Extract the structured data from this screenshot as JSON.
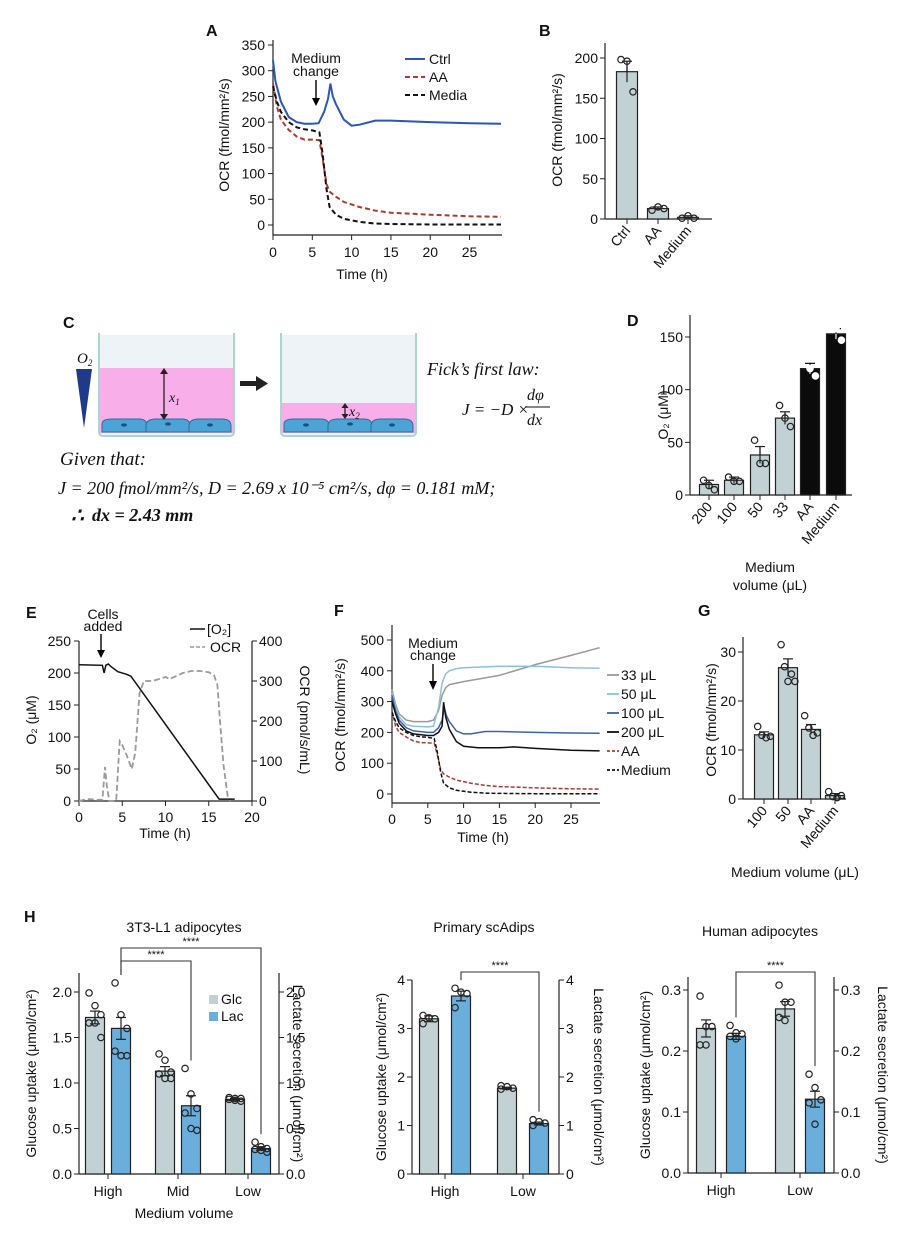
{
  "colors": {
    "ctrl": "#2a57b8",
    "aa": "#b03a2e",
    "black": "#111111",
    "bar_grey": "#c2d1d4",
    "bar_blue": "#6aaedc",
    "vol33": "#9a9a9a",
    "vol50": "#8cc1de",
    "vol100": "#3a64a8",
    "ocr_grey": "#9a9a9a",
    "pink": "#f7a8e8",
    "cell": "#4ca3d6",
    "triangle": "#1f3a8a"
  },
  "panels": {
    "A": "A",
    "B": "B",
    "C": "C",
    "D": "D",
    "E": "E",
    "F": "F",
    "G": "G",
    "H": "H"
  },
  "chart_data": [
    {
      "id": "A",
      "type": "line",
      "xlabel": "Time (h)",
      "ylabel": "OCR (fmol/mm²/s)",
      "xlim": [
        0,
        29
      ],
      "ylim": [
        -20,
        350
      ],
      "xticks": [
        0,
        5,
        10,
        15,
        20,
        25
      ],
      "yticks": [
        0,
        50,
        100,
        150,
        200,
        250,
        300,
        350
      ],
      "annotation": {
        "line1": "Medium",
        "line2": "change",
        "x": 5.6
      },
      "legend": [
        "Ctrl",
        "AA",
        "Media"
      ],
      "legend_position": "top-right",
      "series": [
        {
          "name": "Ctrl",
          "style": "solid",
          "x": [
            0,
            0.3,
            1,
            2,
            3,
            4,
            5,
            5.8,
            6.5,
            7,
            7.3,
            7.6,
            8,
            9,
            10,
            11,
            13,
            15,
            20,
            25,
            29
          ],
          "y": [
            320,
            280,
            240,
            210,
            200,
            197,
            197,
            198,
            220,
            245,
            275,
            250,
            235,
            205,
            193,
            195,
            203,
            203,
            200,
            198,
            197
          ]
        },
        {
          "name": "AA",
          "style": "dashed",
          "x": [
            0,
            0.5,
            1,
            2,
            3,
            4,
            5,
            5.9,
            6.3,
            6.8,
            7.2,
            8,
            9,
            11,
            13,
            15,
            20,
            25,
            29
          ],
          "y": [
            275,
            230,
            205,
            185,
            172,
            166,
            166,
            165,
            130,
            80,
            65,
            55,
            45,
            35,
            28,
            24,
            20,
            17,
            16
          ]
        },
        {
          "name": "Media",
          "style": "dashed",
          "x": [
            0,
            0.5,
            1,
            2,
            3,
            4,
            5,
            5.9,
            6.3,
            6.8,
            7.2,
            8,
            9,
            11,
            13,
            15,
            20,
            25,
            29
          ],
          "y": [
            270,
            240,
            220,
            200,
            190,
            186,
            184,
            180,
            140,
            70,
            35,
            20,
            12,
            6,
            3,
            2,
            1,
            1,
            1
          ]
        }
      ]
    },
    {
      "id": "B",
      "type": "bar",
      "ylabel": "OCR (fmol/mm²/s)",
      "categories": [
        "Ctrl",
        "AA",
        "Medium"
      ],
      "values": [
        183,
        13,
        2
      ],
      "errors": [
        13,
        2,
        2
      ],
      "points": [
        [
          198,
          196,
          158
        ],
        [
          11,
          15,
          13
        ],
        [
          1,
          4,
          1
        ]
      ],
      "ylim": [
        0,
        220
      ],
      "yticks": [
        0,
        50,
        100,
        150,
        200
      ]
    },
    {
      "id": "D",
      "type": "bar",
      "ylabel": "O₂ (μM)",
      "xlabel_line1": "Medium",
      "xlabel_line2": "volume (μL)",
      "categories": [
        "200",
        "100",
        "50",
        "33",
        "AA",
        "Medium"
      ],
      "values": [
        10,
        14,
        38,
        73,
        120,
        153
      ],
      "errors": [
        4,
        3,
        8,
        6,
        5,
        5
      ],
      "points": [
        [
          14,
          9,
          5
        ],
        [
          17,
          13,
          13
        ],
        [
          52,
          30,
          30
        ],
        [
          85,
          73,
          65
        ],
        [
          130,
          120,
          113
        ],
        [
          158,
          158,
          147
        ]
      ],
      "bar_colors": [
        "grey",
        "grey",
        "grey",
        "grey",
        "black",
        "black"
      ],
      "ylim": [
        0,
        170
      ],
      "yticks": [
        0,
        50,
        100,
        150
      ]
    },
    {
      "id": "E",
      "type": "line",
      "xlabel": "Time (h)",
      "ylabel_left": "O₂ (μM)",
      "ylabel_right": "OCR (pmol/s/mL)",
      "xlim": [
        0,
        20
      ],
      "ylim_left": [
        0,
        250
      ],
      "ylim_right": [
        0,
        400
      ],
      "xticks": [
        0,
        5,
        10,
        15,
        20
      ],
      "yticks_left": [
        0,
        50,
        100,
        150,
        200,
        250
      ],
      "yticks_right": [
        0,
        100,
        200,
        300,
        400
      ],
      "annotation": {
        "line1": "Cells",
        "line2": "added",
        "x": 2.6
      },
      "legend": [
        "[O₂]",
        "OCR"
      ],
      "series": [
        {
          "name": "[O2]",
          "axis": "left",
          "style": "solid",
          "x": [
            0,
            2.7,
            2.9,
            3.1,
            3.4,
            3.7,
            4.5,
            5.5,
            6,
            16.2,
            18
          ],
          "y": [
            213,
            212,
            200,
            212,
            214,
            210,
            202,
            198,
            195,
            3,
            3
          ]
        },
        {
          "name": "OCR",
          "axis": "right",
          "style": "dashed",
          "x": [
            0,
            1,
            2,
            2.7,
            3.0,
            3.2,
            3.5,
            3.8,
            4.3,
            4.7,
            5.0,
            5.5,
            6.1,
            6.5,
            7.0,
            7.5,
            8.5,
            10,
            10.5,
            12,
            13,
            14,
            15,
            15.6,
            16,
            16.3,
            16.7,
            17.2,
            17.5
          ],
          "y": [
            0,
            5,
            3,
            3,
            85,
            40,
            0,
            0,
            0,
            150,
            140,
            115,
            80,
            120,
            270,
            300,
            300,
            310,
            305,
            320,
            325,
            325,
            322,
            315,
            290,
            200,
            90,
            10,
            0
          ]
        }
      ]
    },
    {
      "id": "F",
      "type": "line",
      "xlabel": "Time (h)",
      "ylabel": "OCR (fmol/mm²/s)",
      "xlim": [
        0,
        29
      ],
      "ylim": [
        -20,
        550
      ],
      "xticks": [
        0,
        5,
        10,
        15,
        20,
        25
      ],
      "yticks": [
        0,
        100,
        200,
        300,
        400,
        500
      ],
      "annotation": {
        "line1": "Medium",
        "line2": "change",
        "x": 5.8
      },
      "legend": [
        "33 μL",
        "50 μL",
        "100 μL",
        "200 μL",
        "AA",
        "Medium"
      ],
      "legend_position": "right",
      "series": [
        {
          "name": "33 μL",
          "style": "solid",
          "x": [
            0,
            0.5,
            1,
            2,
            3,
            5,
            5.8,
            6.5,
            7,
            7.5,
            8,
            9,
            10,
            15,
            20,
            25,
            29
          ],
          "y": [
            340,
            290,
            260,
            240,
            235,
            235,
            240,
            270,
            320,
            345,
            355,
            360,
            365,
            385,
            420,
            450,
            475
          ]
        },
        {
          "name": "50 μL",
          "style": "solid",
          "x": [
            0,
            0.5,
            1,
            2,
            3,
            5,
            5.8,
            6.5,
            7,
            7.5,
            8,
            9,
            10,
            15,
            20,
            25,
            29
          ],
          "y": [
            330,
            280,
            250,
            225,
            220,
            218,
            220,
            280,
            360,
            390,
            400,
            407,
            410,
            415,
            415,
            410,
            408
          ]
        },
        {
          "name": "100 μL",
          "style": "solid",
          "x": [
            0,
            0.5,
            1,
            2,
            3,
            5,
            5.8,
            6.5,
            7,
            7.3,
            7.6,
            8,
            9,
            10,
            11,
            13,
            15,
            20,
            25,
            29
          ],
          "y": [
            320,
            270,
            240,
            215,
            205,
            200,
            200,
            215,
            240,
            280,
            255,
            235,
            205,
            195,
            195,
            203,
            203,
            200,
            198,
            197
          ]
        },
        {
          "name": "200 μL",
          "style": "solid",
          "x": [
            0,
            0.5,
            1,
            2,
            3,
            5,
            5.8,
            6.5,
            7,
            7.2,
            7.5,
            8,
            9,
            10,
            12,
            15,
            17,
            20,
            25,
            29
          ],
          "y": [
            300,
            260,
            230,
            205,
            195,
            190,
            190,
            200,
            220,
            298,
            250,
            210,
            170,
            155,
            150,
            150,
            153,
            148,
            142,
            140
          ]
        },
        {
          "name": "AA",
          "style": "dashed",
          "x": [
            0,
            0.5,
            1,
            2,
            3,
            4,
            5,
            5.9,
            6.3,
            6.8,
            7.2,
            8,
            9,
            11,
            13,
            15,
            20,
            25,
            29
          ],
          "y": [
            270,
            220,
            200,
            185,
            172,
            167,
            166,
            165,
            130,
            80,
            65,
            55,
            45,
            35,
            28,
            24,
            20,
            17,
            16
          ]
        },
        {
          "name": "Medium",
          "style": "dashed",
          "x": [
            0,
            0.5,
            1,
            2,
            3,
            4,
            5,
            5.9,
            6.3,
            6.8,
            7.2,
            8,
            9,
            11,
            13,
            15,
            20,
            25,
            29
          ],
          "y": [
            265,
            235,
            215,
            200,
            190,
            186,
            184,
            180,
            140,
            70,
            35,
            20,
            12,
            6,
            3,
            2,
            1,
            1,
            1
          ]
        }
      ]
    },
    {
      "id": "G",
      "type": "bar",
      "ylabel": "OCR (fmol/mm²/s)",
      "xlabel": "Medium volume (μL)",
      "categories": [
        "100",
        "50",
        "AA",
        "Medium"
      ],
      "values": [
        13.1,
        26.8,
        14.2,
        0.7
      ],
      "errors": [
        0.6,
        1.8,
        1.0,
        0.4
      ],
      "points": [
        [
          14.8,
          13,
          12.5,
          12.8
        ],
        [
          31.5,
          27,
          24,
          25.5,
          24
        ],
        [
          17,
          14.5,
          13,
          13.5
        ],
        [
          1.5,
          0.5,
          0.3,
          0.7
        ]
      ],
      "ylim": [
        0,
        33
      ],
      "yticks": [
        0,
        10,
        20,
        30
      ]
    },
    {
      "id": "H1",
      "type": "bar",
      "title": "3T3-L1 adipocytes",
      "xlabel": "Medium volume",
      "ylabel_left": "Glucose uptake (μmol/cm²)",
      "ylabel_right": "Lactate secretion (μmol/cm²)",
      "categories": [
        "High",
        "Mid",
        "Low"
      ],
      "legend": [
        "Glc",
        "Lac"
      ],
      "ylim": [
        0,
        2.2
      ],
      "yticks": [
        "0.0",
        "0.5",
        "1.0",
        "1.5",
        "2.0"
      ],
      "series": [
        {
          "name": "Glc",
          "values": [
            1.72,
            1.13,
            0.82
          ],
          "errors": [
            0.07,
            0.05,
            0.01
          ],
          "points": [
            [
              1.99,
              1.85,
              1.75,
              1.66,
              1.66,
              1.5
            ],
            [
              1.32,
              1.25,
              1.12,
              1.1,
              1.05,
              1.05
            ],
            [
              0.84,
              0.83,
              0.83,
              0.82,
              0.81,
              0.8
            ]
          ]
        },
        {
          "name": "Lac",
          "values": [
            1.6,
            0.75,
            0.28
          ],
          "errors": [
            0.12,
            0.11,
            0.02
          ],
          "points": [
            [
              2.1,
              1.75,
              1.6,
              1.35,
              1.3,
              1.3
            ],
            [
              1.16,
              0.88,
              0.72,
              0.67,
              0.5,
              0.48
            ],
            [
              0.35,
              0.3,
              0.28,
              0.27,
              0.26,
              0.24
            ]
          ]
        }
      ],
      "significance": [
        {
          "from": "High-Lac",
          "to": "Mid-Lac",
          "label": "****"
        },
        {
          "from": "High-Lac",
          "to": "Low-Lac",
          "label": "****"
        }
      ]
    },
    {
      "id": "H2",
      "type": "bar",
      "title": "Primary scAdips",
      "ylabel_left": "Glucose uptake (μmol/cm²)",
      "ylabel_right": "Lactate secretion (μmol/cm²)",
      "categories": [
        "High",
        "Low"
      ],
      "ylim": [
        0,
        4
      ],
      "yticks": [
        "0",
        "1",
        "2",
        "3",
        "4"
      ],
      "series": [
        {
          "name": "Glc",
          "values": [
            3.2,
            1.77
          ],
          "errors": [
            0.06,
            0.02
          ],
          "points": [
            [
              3.27,
              3.22,
              3.2,
              3.1
            ],
            [
              1.82,
              1.8,
              1.77,
              1.75
            ]
          ]
        },
        {
          "name": "Lac",
          "values": [
            3.67,
            1.04
          ],
          "errors": [
            0.1,
            0.03
          ],
          "points": [
            [
              3.83,
              3.75,
              3.72,
              3.43
            ],
            [
              1.12,
              1.08,
              1.05,
              1.0
            ]
          ]
        }
      ],
      "significance": [
        {
          "from": "High-Lac",
          "to": "Low-Lac",
          "label": "****"
        }
      ]
    },
    {
      "id": "H3",
      "type": "bar",
      "title": "Human adipocytes",
      "ylabel_left": "Glucose uptake (μmol/cm²)",
      "ylabel_right": "Lactate secretion (μmol/cm²)",
      "categories": [
        "High",
        "Low"
      ],
      "ylim": [
        0,
        0.32
      ],
      "yticks": [
        "0.0",
        "0.1",
        "0.2",
        "0.3"
      ],
      "series": [
        {
          "name": "Glc",
          "values": [
            0.237,
            0.269
          ],
          "errors": [
            0.014,
            0.012
          ],
          "points": [
            [
              0.29,
              0.24,
              0.24,
              0.21,
              0.21
            ],
            [
              0.308,
              0.28,
              0.28,
              0.255,
              0.25
            ]
          ]
        },
        {
          "name": "Lac",
          "values": [
            0.224,
            0.121
          ],
          "errors": [
            0.005,
            0.013
          ],
          "points": [
            [
              0.242,
              0.23,
              0.228,
              0.224,
              0.22
            ],
            [
              0.162,
              0.14,
              0.12,
              0.115,
              0.08
            ]
          ]
        }
      ],
      "significance": [
        {
          "from": "High-Lac",
          "to": "Low-Lac",
          "label": "****"
        }
      ]
    }
  ],
  "diagram_C": {
    "o2_label": "O",
    "o2_sub": "2",
    "x1_label": "x",
    "x1_sub": "1",
    "x2_label": "x",
    "x2_sub": "2",
    "law_title": "Fick’s first law:",
    "law_lhs": "J = −D ×",
    "law_num": "dφ",
    "law_den": "dx",
    "given_title": "Given that:",
    "given_line": "J = 200 fmol/mm²/s, D = 2.69 x 10⁻⁵ cm²/s, dφ = 0.181 mM;",
    "therefore": "∴",
    "result": "dx = 2.43 mm"
  }
}
